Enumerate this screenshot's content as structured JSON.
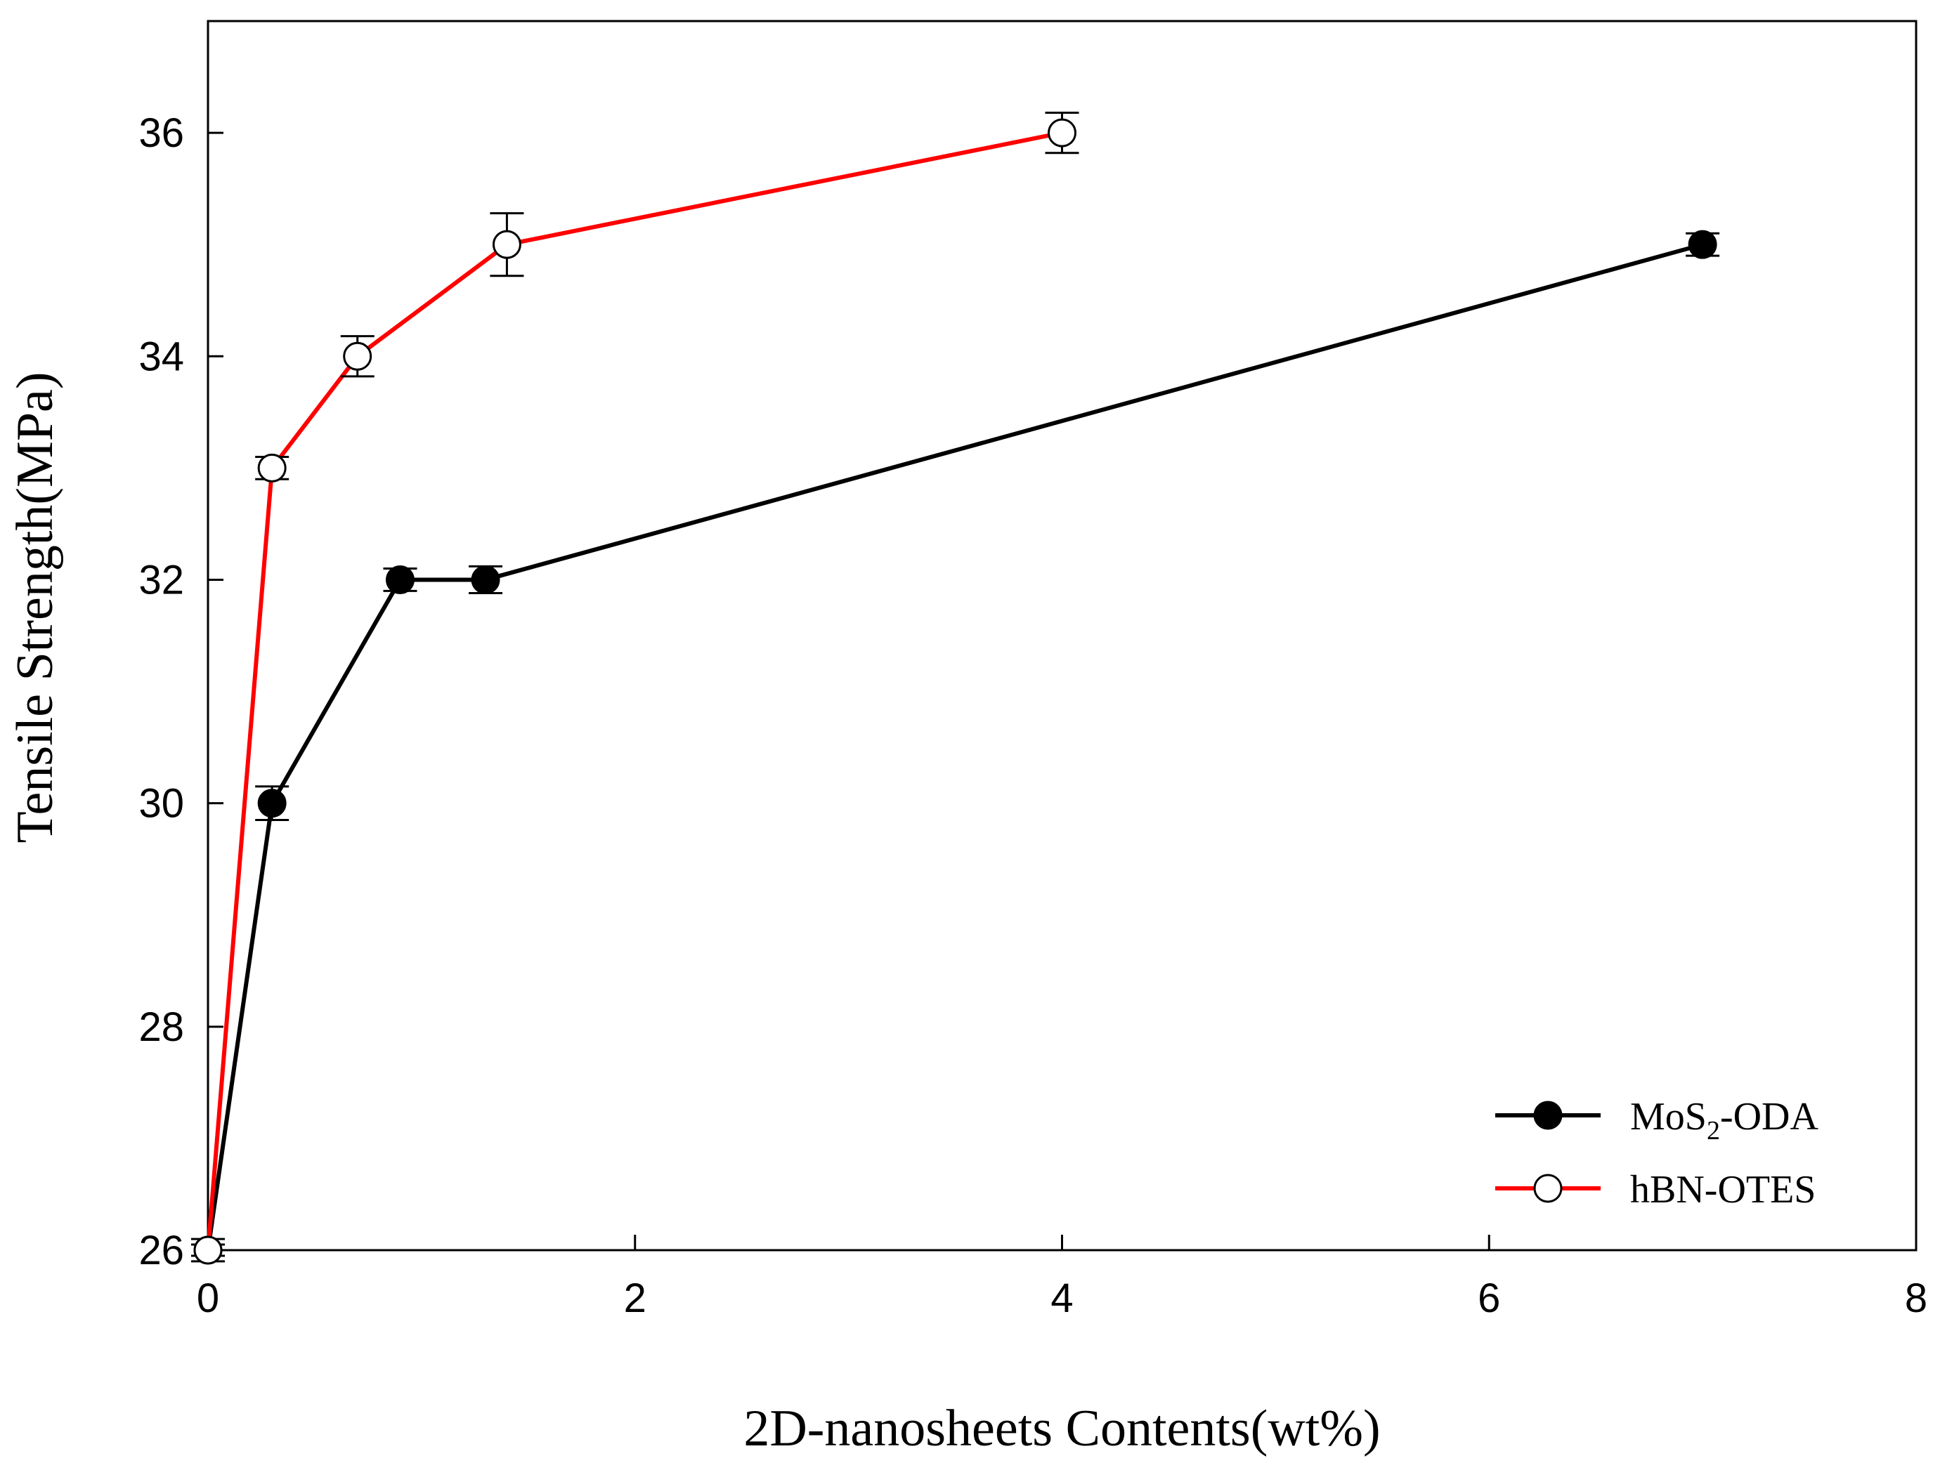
{
  "chart_data": {
    "type": "line",
    "title": "",
    "xlabel": "2D-nanosheets Contents(wt%)",
    "ylabel": "Tensile Strength(MPa)",
    "xlim": [
      0,
      8
    ],
    "ylim": [
      26,
      37
    ],
    "xticks": [
      0,
      2,
      4,
      6,
      8
    ],
    "yticks": [
      26,
      28,
      30,
      32,
      34,
      36
    ],
    "xtick_labels": [
      "0",
      "2",
      "4",
      "6",
      "8"
    ],
    "ytick_labels": [
      "26",
      "28",
      "30",
      "32",
      "34",
      "36"
    ],
    "grid": false,
    "legend_position": "bottom-right",
    "series": [
      {
        "name": "MoS2-ODA",
        "legend_main": "MoS",
        "legend_sub": "2",
        "legend_tail": "-ODA",
        "color": "#000000",
        "marker": "filled-circle",
        "x": [
          0,
          0.3,
          0.9,
          1.3,
          7
        ],
        "y": [
          26,
          30,
          32,
          32,
          35
        ],
        "error": [
          0.1,
          0.15,
          0.1,
          0.12,
          0.1
        ]
      },
      {
        "name": "hBN-OTES",
        "legend_main": "hBN-OTES",
        "legend_sub": "",
        "legend_tail": "",
        "color": "#ff0000",
        "marker": "open-circle",
        "x": [
          0,
          0.3,
          0.7,
          1.4,
          4
        ],
        "y": [
          26,
          33,
          34,
          35,
          36
        ],
        "error": [
          0.05,
          0.1,
          0.18,
          0.28,
          0.18
        ]
      }
    ]
  }
}
